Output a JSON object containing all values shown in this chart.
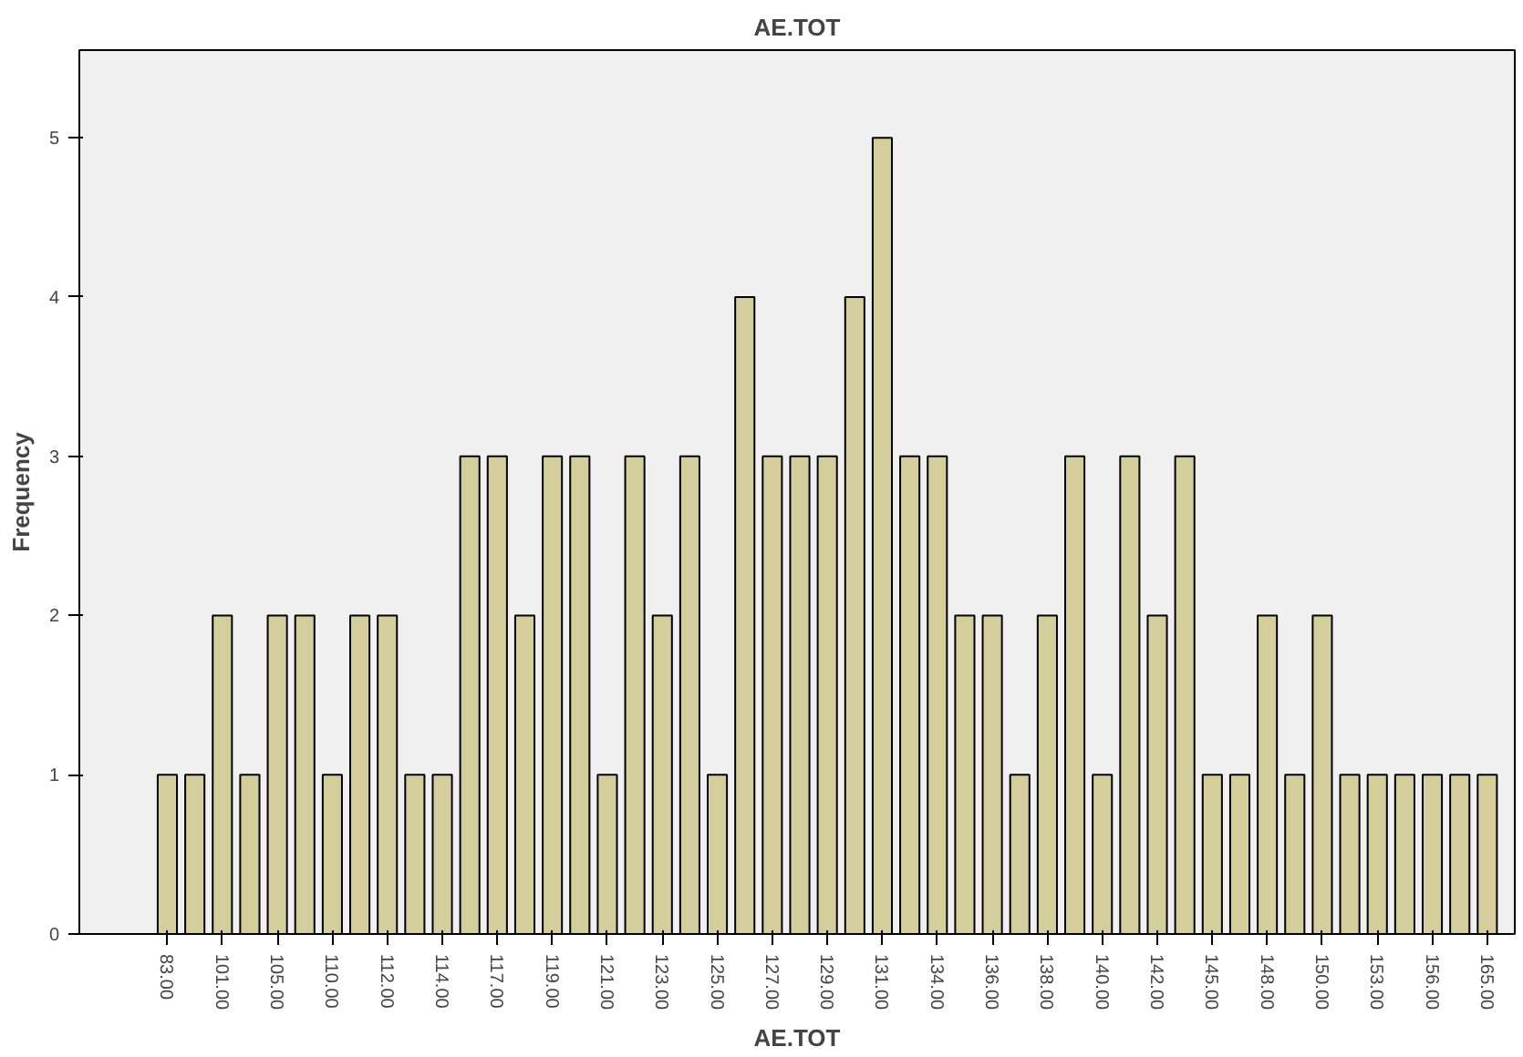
{
  "chart_data": {
    "type": "bar",
    "title": "AE.TOT",
    "xlabel": "AE.TOT",
    "ylabel": "Frequency",
    "categories": [
      "83.00",
      null,
      "101.00",
      null,
      "105.00",
      null,
      "110.00",
      null,
      "112.00",
      null,
      "114.00",
      null,
      "117.00",
      null,
      "119.00",
      null,
      "121.00",
      null,
      "123.00",
      null,
      "125.00",
      null,
      "127.00",
      null,
      "129.00",
      null,
      "131.00",
      null,
      "134.00",
      null,
      "136.00",
      null,
      "138.00",
      null,
      "140.00",
      null,
      "142.00",
      null,
      "145.00",
      null,
      "148.00",
      null,
      "150.00",
      null,
      "153.00",
      null,
      "156.00",
      null,
      "165.00"
    ],
    "values": [
      1,
      1,
      2,
      1,
      2,
      2,
      1,
      2,
      2,
      1,
      1,
      3,
      3,
      2,
      3,
      3,
      1,
      3,
      2,
      3,
      1,
      4,
      3,
      3,
      3,
      4,
      5,
      3,
      3,
      2,
      2,
      1,
      2,
      3,
      1,
      3,
      2,
      3,
      1,
      1,
      2,
      1,
      2,
      1,
      1,
      1,
      1,
      1,
      1
    ],
    "color": "#d3ce9b",
    "ylim": [
      0,
      5.55
    ],
    "yticks": [
      0,
      1,
      2,
      3,
      4,
      5
    ],
    "grid": false
  }
}
